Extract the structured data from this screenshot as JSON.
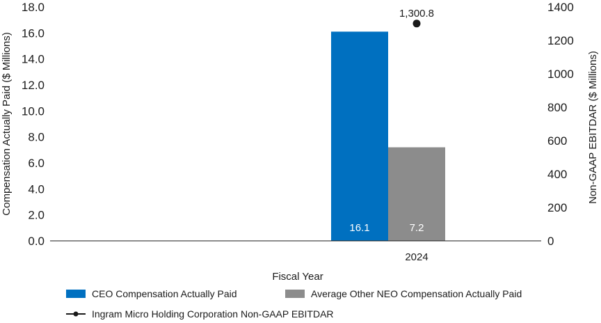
{
  "chart_data": {
    "type": "bar",
    "x": [
      2024
    ],
    "categories": [
      "2024"
    ],
    "series": [
      {
        "name": "CEO Compensation Actually Paid",
        "values": [
          16.1
        ],
        "axis": "left",
        "kind": "bar",
        "color": "#0070c0",
        "labels": [
          "16.1"
        ]
      },
      {
        "name": "Average Other NEO Compensation Actually Paid",
        "values": [
          7.2
        ],
        "axis": "left",
        "kind": "bar",
        "color": "#8c8c8c",
        "labels": [
          "7.2"
        ]
      },
      {
        "name": "Ingram Micro Holding Corporation Non-GAAP EBITDAR",
        "values": [
          1300.8
        ],
        "axis": "right",
        "kind": "line",
        "color": "#1a1a1a",
        "labels": [
          "1,300.8"
        ]
      }
    ],
    "xlabel": "Fiscal Year",
    "ylabel": "Compensation Actually Paid ($ Millions)",
    "y2label": "Non-GAAP EBITDAR ($ Millions)",
    "ylim": [
      0,
      18
    ],
    "y2lim": [
      0,
      1400
    ],
    "yticks": [
      "0.0",
      "2.0",
      "4.0",
      "6.0",
      "8.0",
      "10.0",
      "12.0",
      "14.0",
      "16.0",
      "18.0"
    ],
    "y2ticks": [
      "0",
      "200",
      "400",
      "600",
      "800",
      "1000",
      "1200",
      "1400"
    ],
    "xticks": [
      "2024"
    ],
    "grid": false,
    "legend": "bottom"
  }
}
